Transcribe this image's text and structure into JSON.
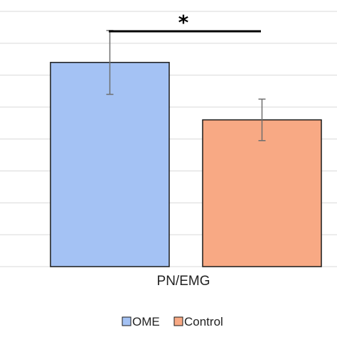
{
  "chart_data": {
    "type": "bar",
    "categories": [
      "PN/EMG"
    ],
    "series": [
      {
        "name": "OME",
        "values": [
          64
        ],
        "error": [
          10
        ],
        "color": "#a4c2f4"
      },
      {
        "name": "Control",
        "values": [
          46
        ],
        "error": [
          6.5
        ],
        "color": "#f8a984"
      }
    ],
    "ylim": [
      0,
      80
    ],
    "grid": true,
    "legend": "bottom",
    "annotations": [
      {
        "text": "*",
        "between": [
          "OME",
          "Control"
        ]
      }
    ]
  }
}
